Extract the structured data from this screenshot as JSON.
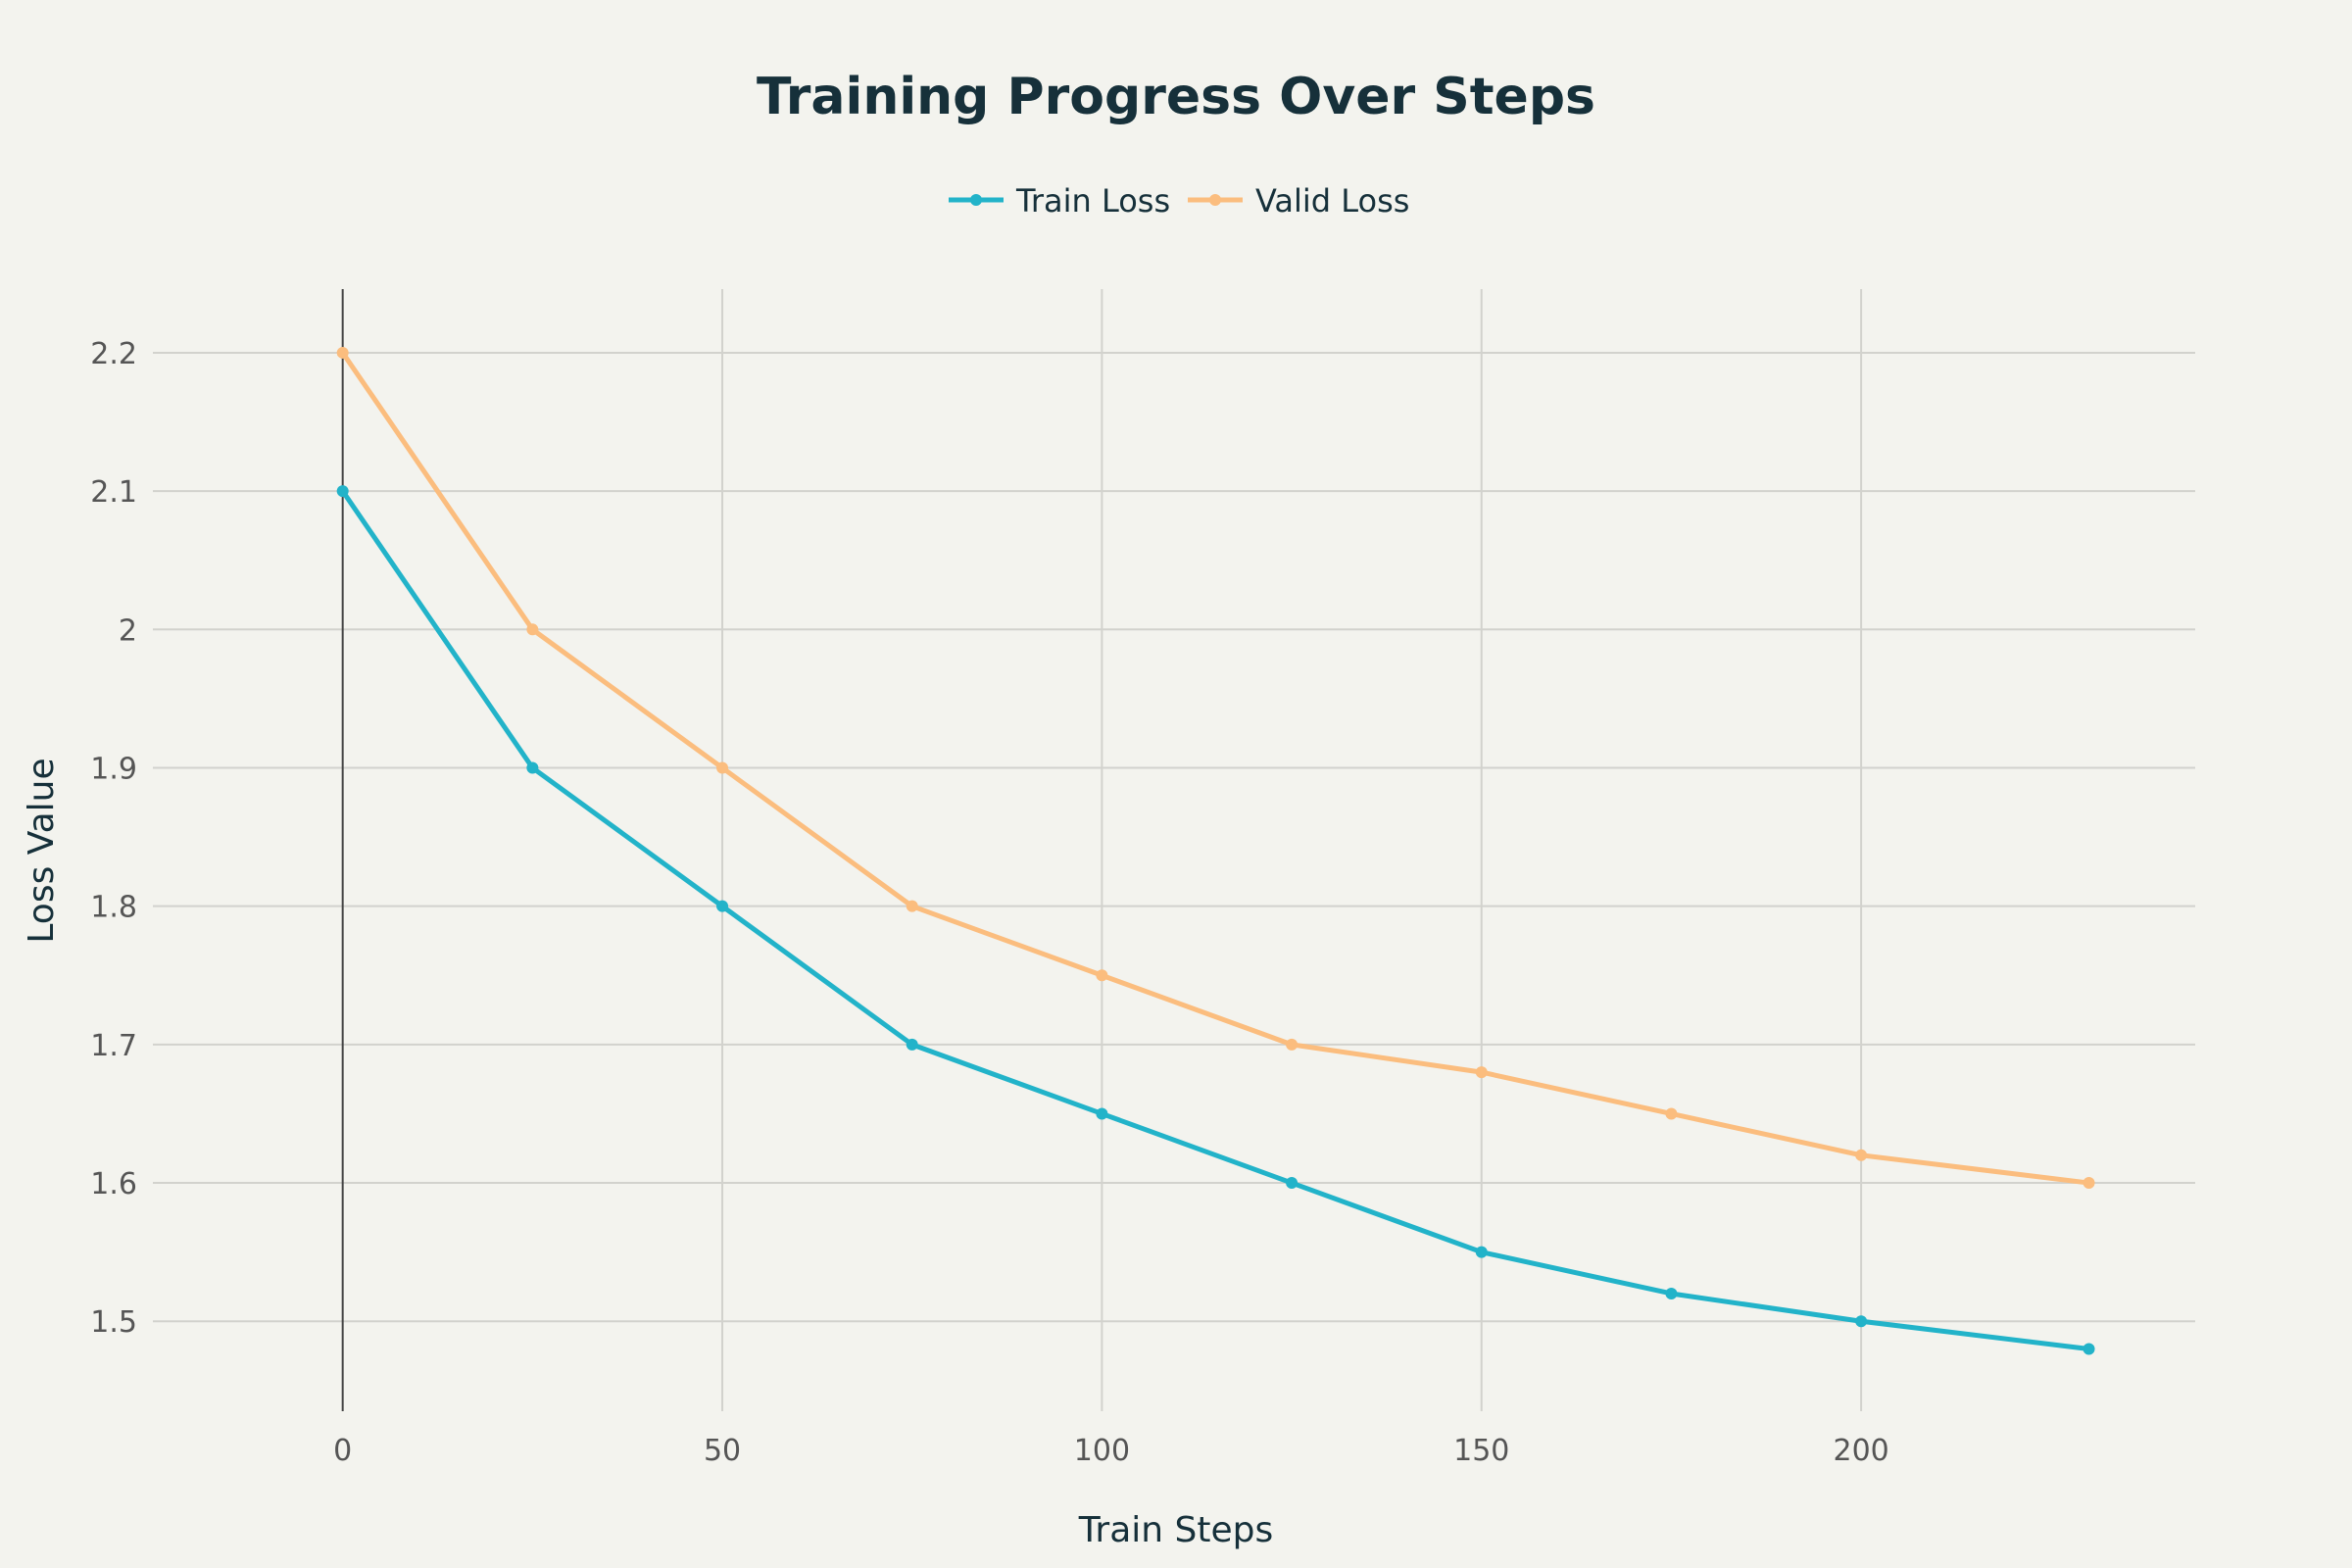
{
  "chart_data": {
    "type": "line",
    "title": "Training Progress Over Steps",
    "xlabel": "Train Steps",
    "ylabel": "Loss Value",
    "xlim": [
      -25,
      244
    ],
    "ylim": [
      1.435,
      2.246
    ],
    "xticks": [
      0,
      50,
      100,
      150,
      200
    ],
    "yticks": [
      1.5,
      1.6,
      1.7,
      1.8,
      1.9,
      2.0,
      2.1,
      2.2
    ],
    "ytick_labels": [
      "1.5",
      "1.6",
      "1.7",
      "1.8",
      "1.9",
      "2",
      "2.1",
      "2.2"
    ],
    "grid": true,
    "legend": "top-center",
    "series": [
      {
        "name": "Train Loss",
        "color": "#22b3c9",
        "x": [
          0,
          25,
          50,
          75,
          100,
          125,
          150,
          175,
          200,
          230
        ],
        "y": [
          2.1,
          1.9,
          1.8,
          1.7,
          1.65,
          1.6,
          1.55,
          1.52,
          1.5,
          1.48
        ]
      },
      {
        "name": "Valid Loss",
        "color": "#fbbd7e",
        "x": [
          0,
          25,
          50,
          75,
          100,
          125,
          150,
          175,
          200,
          230
        ],
        "y": [
          2.2,
          2.0,
          1.9,
          1.8,
          1.75,
          1.7,
          1.68,
          1.65,
          1.62,
          1.6
        ]
      }
    ]
  }
}
